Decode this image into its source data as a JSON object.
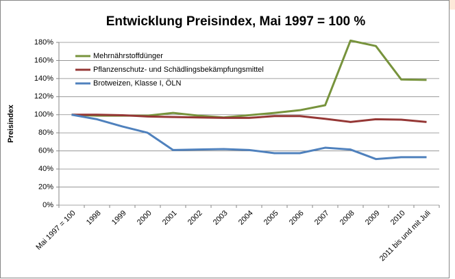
{
  "chart_data": {
    "type": "line",
    "title": "Entwicklung Preisindex, Mai 1997 = 100 %",
    "y_label": "Preisindex",
    "categories": [
      "Mai 1997 = 100",
      "1998",
      "1999",
      "2000",
      "2001",
      "2002",
      "2003",
      "2004",
      "2005",
      "2006",
      "2007",
      "2008",
      "2009",
      "2010",
      "2011 bis und mit Juli"
    ],
    "series": [
      {
        "name": "Mehrnährstoffdünger",
        "color": "#77933c",
        "values": [
          100,
          99,
          99,
          99,
          102,
          99,
          97,
          99.5,
          102,
          105,
          110.5,
          182,
          176,
          139,
          138.5
        ]
      },
      {
        "name": "Pflanzenschutz- und Schädlingsbekämpfungsmittel",
        "color": "#953735",
        "values": [
          100,
          100,
          99.5,
          98,
          97.5,
          97,
          96.5,
          96.5,
          98.5,
          98.5,
          95.5,
          92,
          95,
          94.5,
          92
        ]
      },
      {
        "name": "Brotweizen, Klasse I, ÖLN",
        "color": "#4f81bd",
        "values": [
          100,
          95,
          87,
          80,
          61,
          61.5,
          62,
          61,
          57.5,
          57.5,
          63.5,
          61.5,
          51,
          53,
          53
        ]
      }
    ],
    "ylim": [
      0,
      180
    ],
    "yticks": [
      {
        "value": 0,
        "label": "0%"
      },
      {
        "value": 20,
        "label": "20%"
      },
      {
        "value": 40,
        "label": "40%"
      },
      {
        "value": 60,
        "label": "60%"
      },
      {
        "value": 80,
        "label": "80%"
      },
      {
        "value": 100,
        "label": "100%"
      },
      {
        "value": 120,
        "label": "120%"
      },
      {
        "value": 140,
        "label": "140%"
      },
      {
        "value": 160,
        "label": "160%"
      },
      {
        "value": 180,
        "label": "180%"
      }
    ],
    "grid": true,
    "legend": "top-left"
  }
}
